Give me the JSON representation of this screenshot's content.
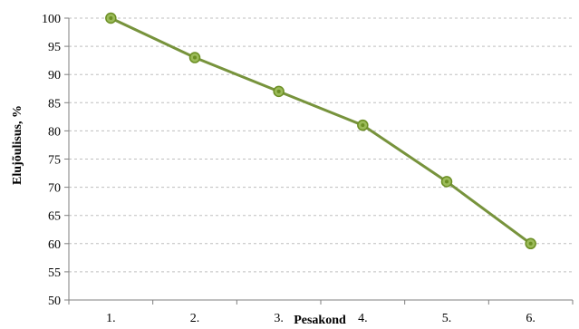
{
  "chart_data": {
    "type": "line",
    "title": "",
    "xlabel": "Pesakond",
    "ylabel": "Elujõulisus, %",
    "categories": [
      "1.",
      "2.",
      "3.",
      "4.",
      "5.",
      "6."
    ],
    "series": [
      {
        "values": [
          100,
          93,
          87,
          81,
          71,
          60
        ]
      }
    ],
    "ylim": [
      50,
      100
    ],
    "yticks": [
      50,
      55,
      60,
      65,
      70,
      75,
      80,
      85,
      90,
      95,
      100
    ],
    "grid": "horizontal-dashed",
    "legend": "none",
    "colors": {
      "line": "#77933C",
      "marker_fill": "#9BBB59",
      "marker_stroke": "#6B8E23",
      "grid": "#bfbfbf",
      "axis": "#7f7f7f"
    }
  }
}
